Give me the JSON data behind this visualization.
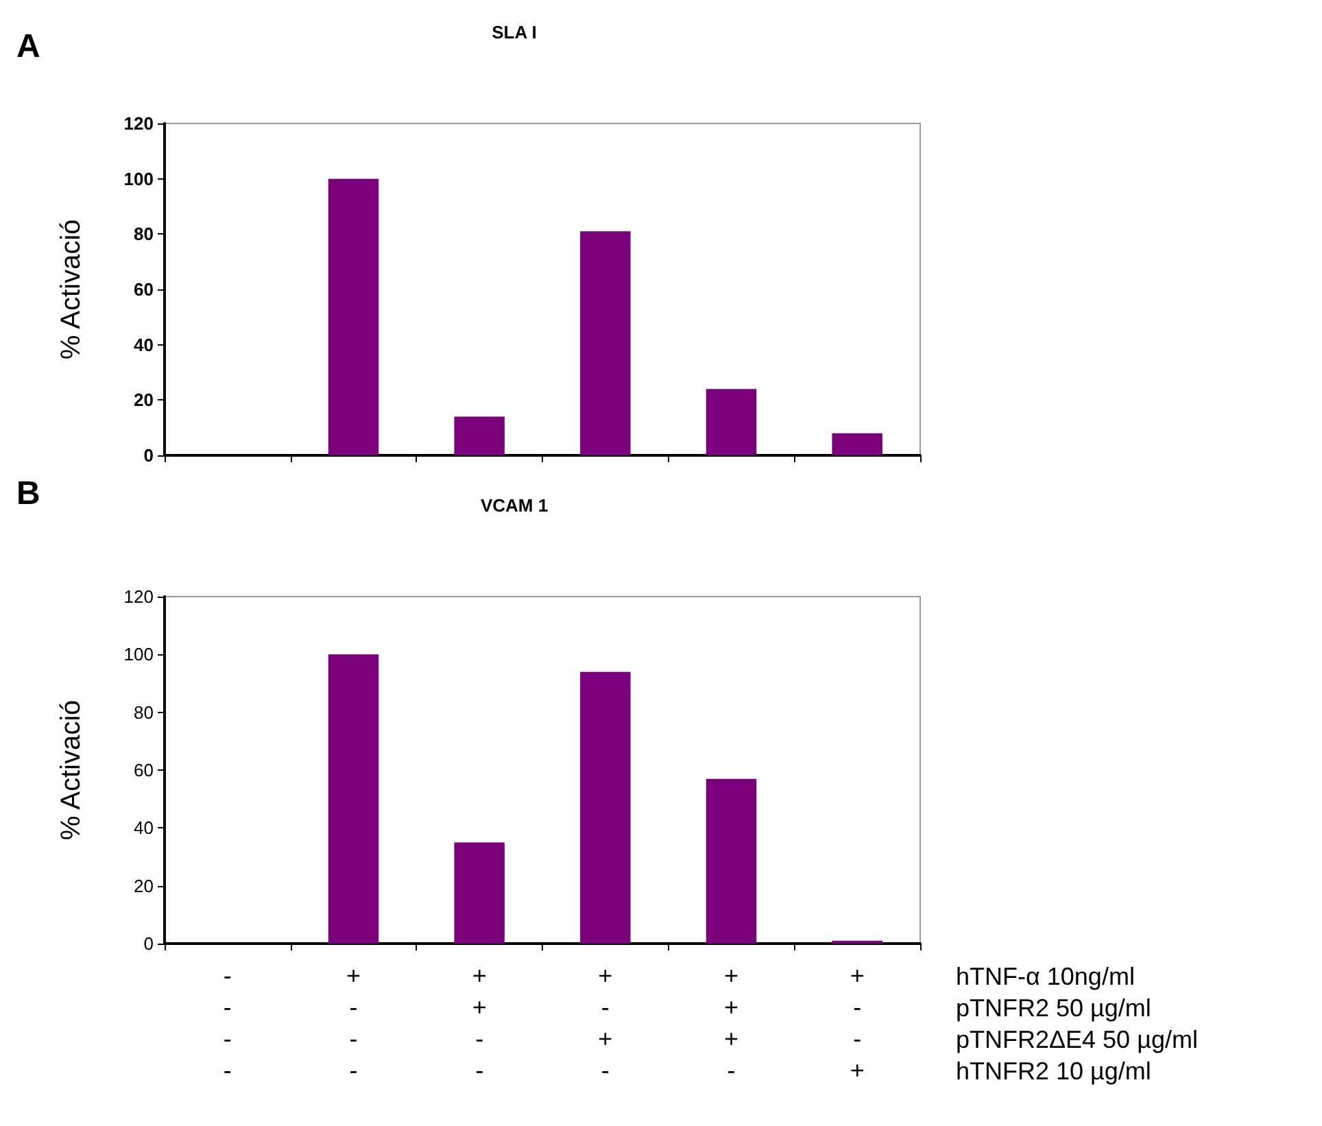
{
  "chart_data": [
    {
      "type": "bar",
      "title": "SLA I",
      "ylabel": "% Activació",
      "categories": [
        null,
        null,
        null,
        null,
        null,
        null
      ],
      "values": [
        0,
        100,
        14,
        81,
        24,
        8
      ],
      "color": "#7b007b",
      "ylim": [
        0,
        120
      ],
      "yticks": [
        0,
        20,
        40,
        60,
        80,
        100,
        120
      ],
      "tick_labels": "y",
      "annotations": [
        "A"
      ]
    },
    {
      "type": "bar",
      "title": "VCAM 1",
      "ylabel": "% Activació",
      "categories": [
        "-\n-\n-\n-",
        "+\n-\n-\n-",
        "+\n+\n-\n-",
        "+\n-\n+\n-",
        "+\n+\n+\n-",
        "+\n-\n-\n+"
      ],
      "values": [
        0,
        100,
        35,
        94,
        57,
        1
      ],
      "color": "#7b007b",
      "ylim": [
        0,
        120
      ],
      "yticks": [
        0,
        20,
        40,
        60,
        80,
        100,
        120
      ],
      "annotations": [
        "B",
        "hTNF-α 10ng/ml",
        "pTNFR2 50 µg/ml",
        "pTNFR2ΔE4 50 µg/ml",
        "hTNFR2 10 µg/ml"
      ]
    }
  ]
}
